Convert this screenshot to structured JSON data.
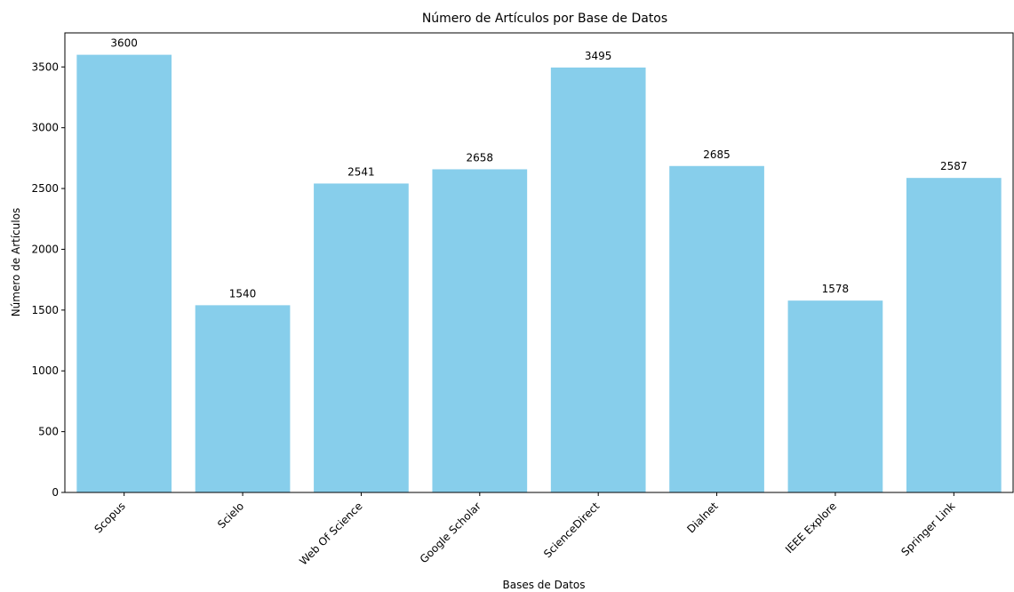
{
  "chart_data": {
    "type": "bar",
    "title": "Número de Artículos por Base de Datos",
    "xlabel": "Bases de Datos",
    "ylabel": "Número de Artículos",
    "categories": [
      "Scopus",
      "Scielo",
      "Web Of Science",
      "Google Scholar",
      "ScienceDirect",
      "Dialnet",
      "IEEE Explore",
      "Springer Link"
    ],
    "values": [
      3600,
      1540,
      2541,
      2658,
      3495,
      2685,
      1578,
      2587
    ],
    "value_labels": [
      "3600",
      "1540",
      "2541",
      "2658",
      "3495",
      "2685",
      "1578",
      "2587"
    ],
    "ylim": [
      0,
      3780
    ],
    "yticks": [
      0,
      500,
      1000,
      1500,
      2000,
      2500,
      3000,
      3500
    ],
    "ytick_labels": [
      "0",
      "500",
      "1000",
      "1500",
      "2000",
      "2500",
      "3000",
      "3500"
    ],
    "bar_color": "#87ceeb",
    "grid": false,
    "legend": "none"
  }
}
